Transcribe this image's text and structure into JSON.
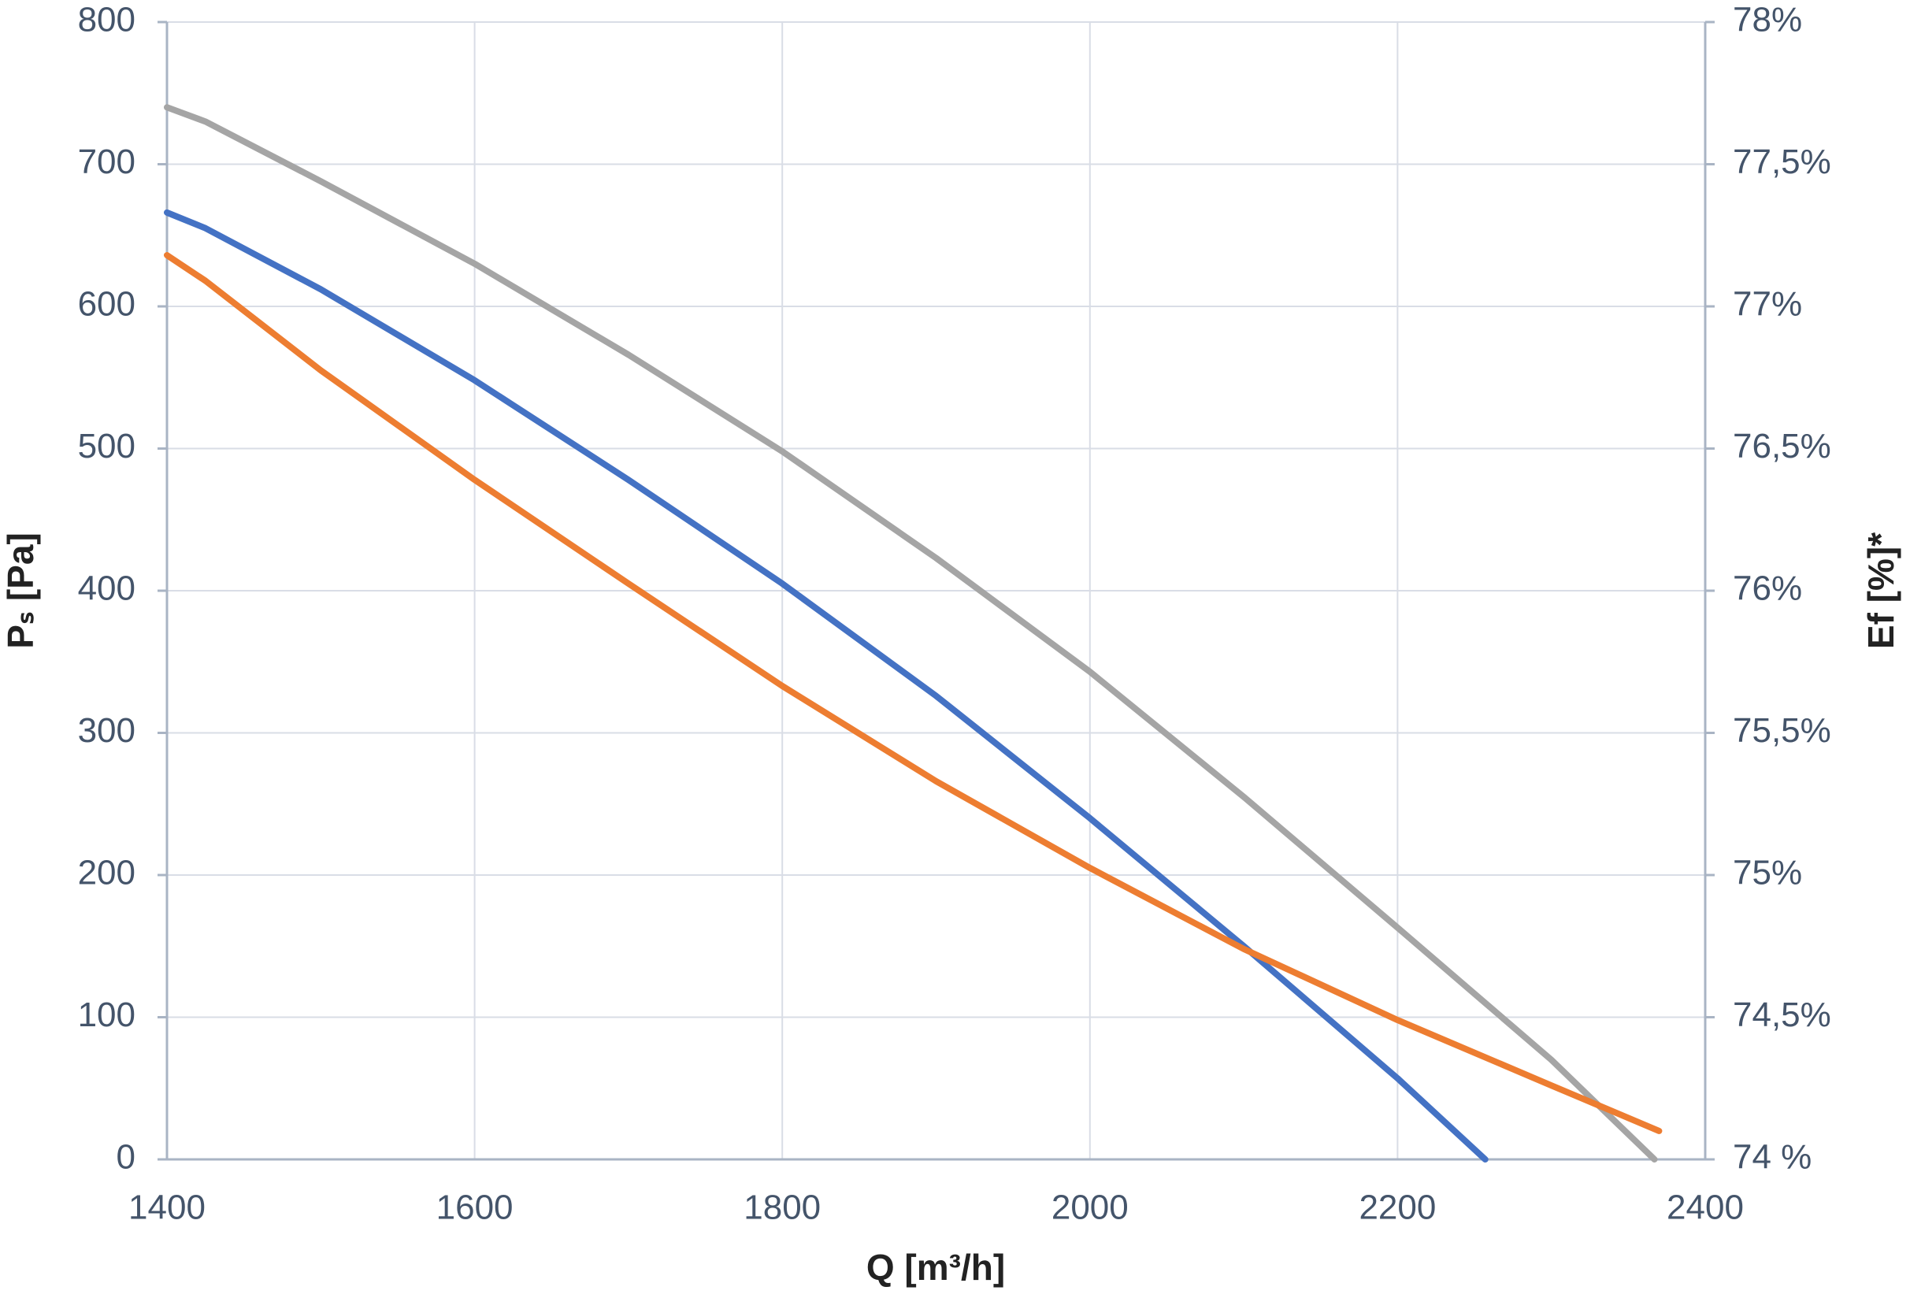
{
  "chart_data": {
    "type": "line",
    "x_label": "Q [m³/h]",
    "y_label": "Pₛ [Pa]",
    "y2_label": "Ef [%]*",
    "xlim": [
      1400,
      2400
    ],
    "xticks": [
      1400,
      1600,
      1800,
      2000,
      2200,
      2400
    ],
    "ylim": [
      0,
      800
    ],
    "yticks": [
      0,
      100,
      200,
      300,
      400,
      500,
      600,
      700,
      800
    ],
    "y2lim": [
      74,
      78
    ],
    "y2ticks": [
      {
        "value": 74,
        "label": "74 %"
      },
      {
        "value": 74.5,
        "label": "74,5%"
      },
      {
        "value": 75,
        "label": "75%"
      },
      {
        "value": 75.5,
        "label": "75,5%"
      },
      {
        "value": 76,
        "label": "76%"
      },
      {
        "value": 76.5,
        "label": "76,5%"
      },
      {
        "value": 77,
        "label": "77%"
      },
      {
        "value": 77.5,
        "label": "77,5%"
      },
      {
        "value": 78,
        "label": "78%"
      }
    ],
    "grid": true,
    "series": [
      {
        "color": "#a5a5a5",
        "x": [
          1400,
          1425,
          1500,
          1600,
          1700,
          1800,
          1900,
          2000,
          2100,
          2200,
          2300,
          2367
        ],
        "values": [
          740,
          730,
          688,
          630,
          566,
          498,
          423,
          343,
          255,
          163,
          70,
          0
        ]
      },
      {
        "color": "#4472c4",
        "x": [
          1400,
          1425,
          1500,
          1600,
          1700,
          1800,
          1900,
          2000,
          2100,
          2200,
          2257
        ],
        "values": [
          666,
          655,
          612,
          548,
          478,
          405,
          326,
          240,
          150,
          57,
          0
        ]
      },
      {
        "color": "#ed7d31",
        "x": [
          1400,
          1425,
          1500,
          1600,
          1700,
          1800,
          1900,
          2000,
          2100,
          2200,
          2300,
          2370
        ],
        "values": [
          636,
          618,
          555,
          478,
          405,
          333,
          266,
          205,
          148,
          98,
          52,
          20
        ]
      }
    ]
  }
}
